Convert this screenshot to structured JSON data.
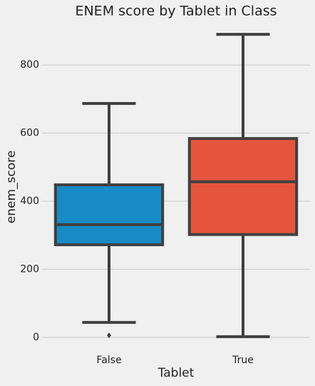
{
  "chart_data": {
    "type": "box",
    "title": "ENEM score by Tablet in Class",
    "x_label": "Tablet",
    "y_label": "enem_score",
    "categories": [
      "False",
      "True"
    ],
    "colors": [
      "#188bc5",
      "#e5553d"
    ],
    "boxes": [
      {
        "whislo": 44,
        "q1": 272,
        "med": 331,
        "q3": 448,
        "whishi": 687,
        "fliers": [
          6
        ]
      },
      {
        "whislo": 2,
        "q1": 302,
        "med": 457,
        "q3": 584,
        "whishi": 890,
        "fliers": []
      }
    ],
    "ylim": [
      -36,
      928
    ],
    "yticks": [
      0,
      200,
      400,
      600,
      800
    ],
    "grid": true
  }
}
